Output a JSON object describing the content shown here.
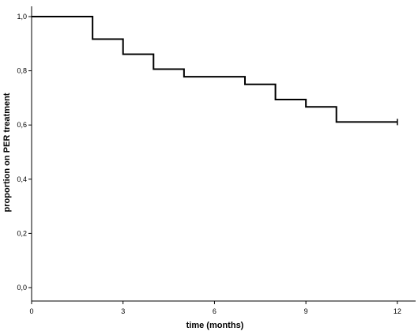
{
  "chart_data": {
    "type": "line",
    "subtype": "kaplan-meier-step",
    "title": "",
    "xlabel": "time (months)",
    "ylabel": "proportion on PER treatment",
    "xlim": [
      0,
      12.6
    ],
    "ylim": [
      0.0,
      1.0
    ],
    "x_ticks": [
      0,
      3,
      6,
      9,
      12
    ],
    "x_tick_labels": [
      "0",
      "3",
      "6",
      "9",
      "12"
    ],
    "y_ticks": [
      0.0,
      0.2,
      0.4,
      0.6,
      0.8,
      1.0
    ],
    "y_tick_labels": [
      "0,0",
      "0,2",
      "0,4",
      "0,6",
      "0,8",
      "1,0"
    ],
    "grid": false,
    "legend": "none",
    "series": [
      {
        "steps": [
          {
            "x": 0,
            "y": 1.0
          },
          {
            "x": 2,
            "y": 0.917
          },
          {
            "x": 3,
            "y": 0.861
          },
          {
            "x": 4,
            "y": 0.806
          },
          {
            "x": 5,
            "y": 0.778
          },
          {
            "x": 7,
            "y": 0.75
          },
          {
            "x": 8,
            "y": 0.694
          },
          {
            "x": 9,
            "y": 0.667
          },
          {
            "x": 10,
            "y": 0.611
          }
        ],
        "end_x": 12,
        "censored": [
          {
            "x": 12,
            "y": 0.611
          }
        ]
      }
    ],
    "line_color": "#000000"
  }
}
